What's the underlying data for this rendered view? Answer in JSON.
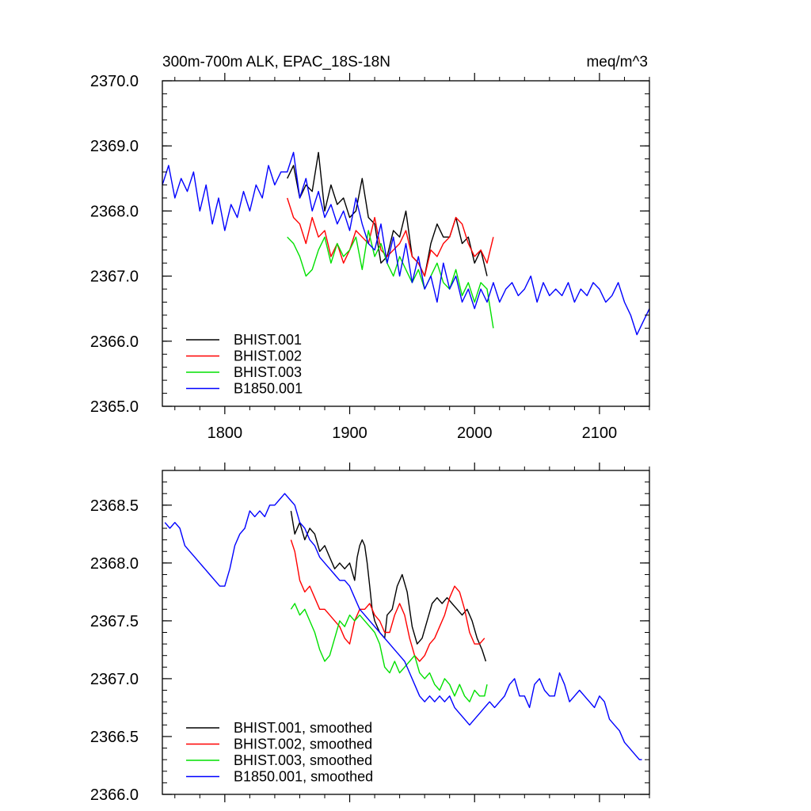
{
  "chart_data": [
    {
      "type": "line",
      "title_left": "300m-700m ALK, EPAC_18S-18N",
      "title_right": "meq/m^3",
      "xlim": [
        1750,
        2140
      ],
      "ylim": [
        2365.0,
        2370.0
      ],
      "xticks": [
        1800,
        1900,
        2000,
        2100
      ],
      "xtick_labels": [
        "1800",
        "1900",
        "2000",
        "2100"
      ],
      "yticks": [
        2365.0,
        2366.0,
        2367.0,
        2368.0,
        2369.0,
        2370.0
      ],
      "ytick_labels": [
        "2365.0",
        "2366.0",
        "2367.0",
        "2368.0",
        "2369.0",
        "2370.0"
      ],
      "legend": [
        "BHIST.001",
        "BHIST.002",
        "BHIST.003",
        "B1850.001"
      ],
      "series": [
        {
          "name": "BHIST.001",
          "color": "#000000",
          "x": [
            1850,
            1855,
            1860,
            1865,
            1870,
            1875,
            1880,
            1885,
            1890,
            1895,
            1900,
            1905,
            1910,
            1915,
            1920,
            1925,
            1930,
            1935,
            1940,
            1945,
            1950,
            1955,
            1960,
            1965,
            1970,
            1975,
            1980,
            1985,
            1990,
            1995,
            2000,
            2005,
            2010
          ],
          "y": [
            2368.5,
            2368.7,
            2368.2,
            2368.4,
            2368.3,
            2368.9,
            2368.0,
            2368.4,
            2368.1,
            2368.2,
            2367.9,
            2368.0,
            2368.5,
            2367.9,
            2367.8,
            2367.2,
            2367.3,
            2367.7,
            2367.6,
            2368.0,
            2367.3,
            2367.2,
            2367.0,
            2367.5,
            2367.8,
            2367.6,
            2367.6,
            2367.9,
            2367.5,
            2367.6,
            2367.2,
            2367.4,
            2367.0
          ]
        },
        {
          "name": "BHIST.002",
          "color": "#ff0000",
          "x": [
            1850,
            1855,
            1860,
            1865,
            1870,
            1875,
            1880,
            1885,
            1890,
            1895,
            1900,
            1905,
            1910,
            1915,
            1920,
            1925,
            1930,
            1935,
            1940,
            1945,
            1950,
            1955,
            1960,
            1965,
            1970,
            1975,
            1980,
            1985,
            1990,
            1995,
            2000,
            2005,
            2010,
            2015
          ],
          "y": [
            2368.2,
            2367.9,
            2367.8,
            2367.5,
            2367.9,
            2367.6,
            2367.7,
            2367.3,
            2367.5,
            2367.2,
            2367.4,
            2367.7,
            2367.6,
            2367.5,
            2367.9,
            2367.4,
            2367.3,
            2367.4,
            2367.5,
            2367.7,
            2367.3,
            2367.2,
            2367.0,
            2367.4,
            2367.3,
            2367.5,
            2367.6,
            2367.9,
            2367.8,
            2367.5,
            2367.3,
            2367.4,
            2367.2,
            2367.6
          ]
        },
        {
          "name": "BHIST.003",
          "color": "#00e000",
          "x": [
            1850,
            1855,
            1860,
            1865,
            1870,
            1875,
            1880,
            1885,
            1890,
            1895,
            1900,
            1905,
            1910,
            1915,
            1920,
            1925,
            1930,
            1935,
            1940,
            1945,
            1950,
            1955,
            1960,
            1965,
            1970,
            1975,
            1980,
            1985,
            1990,
            1995,
            2000,
            2005,
            2010,
            2015
          ],
          "y": [
            2367.6,
            2367.5,
            2367.3,
            2367.0,
            2367.1,
            2367.4,
            2367.6,
            2367.2,
            2367.5,
            2367.3,
            2367.4,
            2367.6,
            2367.1,
            2367.7,
            2367.3,
            2367.5,
            2367.2,
            2367.0,
            2367.3,
            2367.1,
            2366.9,
            2367.1,
            2366.8,
            2367.0,
            2367.2,
            2366.9,
            2366.8,
            2367.1,
            2366.7,
            2366.9,
            2366.6,
            2366.9,
            2366.8,
            2366.2
          ]
        },
        {
          "name": "B1850.001",
          "color": "#0000ff",
          "x": [
            1750,
            1755,
            1760,
            1765,
            1770,
            1775,
            1780,
            1785,
            1790,
            1795,
            1800,
            1805,
            1810,
            1815,
            1820,
            1825,
            1830,
            1835,
            1840,
            1845,
            1850,
            1855,
            1860,
            1865,
            1870,
            1875,
            1880,
            1885,
            1890,
            1895,
            1900,
            1905,
            1910,
            1915,
            1920,
            1925,
            1930,
            1935,
            1940,
            1945,
            1950,
            1955,
            1960,
            1965,
            1970,
            1975,
            1980,
            1985,
            1990,
            1995,
            2000,
            2005,
            2010,
            2015,
            2020,
            2025,
            2030,
            2035,
            2040,
            2045,
            2050,
            2055,
            2060,
            2065,
            2070,
            2075,
            2080,
            2085,
            2090,
            2095,
            2100,
            2105,
            2110,
            2115,
            2120,
            2125,
            2130,
            2135,
            2140
          ],
          "y": [
            2368.4,
            2368.7,
            2368.2,
            2368.5,
            2368.3,
            2368.6,
            2368.0,
            2368.4,
            2367.8,
            2368.2,
            2367.7,
            2368.1,
            2367.9,
            2368.3,
            2368.0,
            2368.4,
            2368.2,
            2368.7,
            2368.4,
            2368.6,
            2368.6,
            2368.9,
            2368.2,
            2368.5,
            2368.0,
            2368.3,
            2367.9,
            2368.1,
            2367.8,
            2368.0,
            2367.7,
            2368.2,
            2367.8,
            2367.5,
            2367.4,
            2367.8,
            2367.2,
            2367.6,
            2367.0,
            2367.5,
            2366.9,
            2367.3,
            2366.8,
            2367.0,
            2366.6,
            2367.2,
            2366.8,
            2367.0,
            2366.6,
            2366.8,
            2366.5,
            2366.8,
            2366.6,
            2366.9,
            2366.6,
            2366.8,
            2366.9,
            2366.7,
            2366.8,
            2367.0,
            2366.6,
            2366.9,
            2366.7,
            2366.8,
            2366.7,
            2366.9,
            2366.6,
            2366.8,
            2366.7,
            2366.9,
            2366.8,
            2366.6,
            2366.7,
            2366.9,
            2366.6,
            2366.4,
            2366.1,
            2366.3,
            2366.5
          ]
        }
      ]
    },
    {
      "type": "line",
      "xlim": [
        1750,
        2140
      ],
      "ylim": [
        2366.0,
        2368.8
      ],
      "xticks": [
        1800,
        1900,
        2000,
        2100
      ],
      "xtick_labels": [],
      "yticks": [
        2366.0,
        2366.5,
        2367.0,
        2367.5,
        2368.0,
        2368.5
      ],
      "ytick_labels": [
        "2366.0",
        "2366.5",
        "2367.0",
        "2367.5",
        "2368.0",
        "2368.5"
      ],
      "legend": [
        "BHIST.001, smoothed",
        "BHIST.002, smoothed",
        "BHIST.003, smoothed",
        "B1850.001, smoothed"
      ],
      "series": [
        {
          "name": "BHIST.001, smoothed",
          "color": "#000000",
          "x": [
            1853,
            1856,
            1860,
            1864,
            1868,
            1872,
            1876,
            1880,
            1884,
            1888,
            1892,
            1896,
            1900,
            1904,
            1906,
            1908,
            1910,
            1912,
            1914,
            1916,
            1918,
            1920,
            1924,
            1928,
            1930,
            1934,
            1938,
            1942,
            1946,
            1950,
            1954,
            1958,
            1962,
            1966,
            1970,
            1974,
            1978,
            1982,
            1986,
            1990,
            1994,
            1998,
            2002,
            2006,
            2009
          ],
          "y": [
            2368.45,
            2368.25,
            2368.35,
            2368.2,
            2368.3,
            2368.25,
            2368.1,
            2368.15,
            2368.05,
            2367.95,
            2368.0,
            2367.95,
            2368.0,
            2367.85,
            2368.05,
            2368.15,
            2368.2,
            2368.15,
            2368.0,
            2367.8,
            2367.6,
            2367.5,
            2367.4,
            2367.35,
            2367.55,
            2367.6,
            2367.8,
            2367.9,
            2367.75,
            2367.45,
            2367.3,
            2367.35,
            2367.5,
            2367.65,
            2367.7,
            2367.65,
            2367.7,
            2367.65,
            2367.6,
            2367.55,
            2367.6,
            2367.5,
            2367.35,
            2367.25,
            2367.15
          ]
        },
        {
          "name": "BHIST.002, smoothed",
          "color": "#ff0000",
          "x": [
            1853,
            1856,
            1860,
            1864,
            1868,
            1872,
            1876,
            1880,
            1884,
            1888,
            1892,
            1896,
            1900,
            1904,
            1908,
            1912,
            1916,
            1920,
            1924,
            1928,
            1932,
            1936,
            1940,
            1944,
            1948,
            1952,
            1956,
            1960,
            1964,
            1968,
            1972,
            1976,
            1980,
            1984,
            1988,
            1992,
            1996,
            2000,
            2004,
            2008
          ],
          "y": [
            2368.2,
            2368.1,
            2367.85,
            2367.75,
            2367.8,
            2367.7,
            2367.6,
            2367.6,
            2367.55,
            2367.5,
            2367.45,
            2367.35,
            2367.3,
            2367.5,
            2367.6,
            2367.6,
            2367.65,
            2367.55,
            2367.5,
            2367.4,
            2367.4,
            2367.55,
            2367.65,
            2367.55,
            2367.35,
            2367.2,
            2367.15,
            2367.2,
            2367.3,
            2367.35,
            2367.45,
            2367.55,
            2367.7,
            2367.8,
            2367.75,
            2367.6,
            2367.4,
            2367.3,
            2367.3,
            2367.35
          ]
        },
        {
          "name": "BHIST.003, smoothed",
          "color": "#00e000",
          "x": [
            1853,
            1856,
            1860,
            1864,
            1868,
            1872,
            1876,
            1880,
            1884,
            1888,
            1892,
            1896,
            1900,
            1904,
            1908,
            1912,
            1916,
            1920,
            1924,
            1928,
            1932,
            1936,
            1940,
            1944,
            1948,
            1952,
            1956,
            1960,
            1964,
            1968,
            1972,
            1976,
            1980,
            1984,
            1988,
            1992,
            1996,
            2000,
            2004,
            2008,
            2010
          ],
          "y": [
            2367.6,
            2367.65,
            2367.55,
            2367.6,
            2367.5,
            2367.4,
            2367.25,
            2367.15,
            2367.2,
            2367.35,
            2367.5,
            2367.45,
            2367.55,
            2367.5,
            2367.55,
            2367.5,
            2367.45,
            2367.4,
            2367.3,
            2367.1,
            2367.05,
            2367.15,
            2367.05,
            2367.1,
            2367.15,
            2367.2,
            2367.05,
            2367.0,
            2367.05,
            2366.95,
            2366.9,
            2367.0,
            2366.95,
            2366.85,
            2366.95,
            2366.85,
            2366.8,
            2366.9,
            2366.85,
            2366.85,
            2366.95
          ]
        },
        {
          "name": "B1850.001, smoothed",
          "color": "#0000ff",
          "x": [
            1752,
            1756,
            1760,
            1764,
            1768,
            1772,
            1776,
            1780,
            1784,
            1788,
            1792,
            1796,
            1800,
            1804,
            1808,
            1812,
            1816,
            1820,
            1824,
            1828,
            1832,
            1836,
            1840,
            1844,
            1848,
            1852,
            1856,
            1860,
            1864,
            1868,
            1872,
            1876,
            1880,
            1884,
            1888,
            1892,
            1896,
            1900,
            1904,
            1908,
            1912,
            1916,
            1920,
            1924,
            1928,
            1932,
            1936,
            1940,
            1944,
            1948,
            1952,
            1956,
            1960,
            1964,
            1968,
            1972,
            1976,
            1980,
            1984,
            1988,
            1992,
            1996,
            2000,
            2004,
            2008,
            2012,
            2016,
            2020,
            2024,
            2028,
            2032,
            2036,
            2040,
            2044,
            2048,
            2052,
            2056,
            2060,
            2064,
            2068,
            2072,
            2076,
            2080,
            2084,
            2088,
            2092,
            2096,
            2100,
            2104,
            2108,
            2112,
            2116,
            2120,
            2124,
            2128,
            2132,
            2134
          ],
          "y": [
            2368.35,
            2368.3,
            2368.35,
            2368.3,
            2368.15,
            2368.1,
            2368.05,
            2368.0,
            2367.95,
            2367.9,
            2367.85,
            2367.8,
            2367.8,
            2367.95,
            2368.15,
            2368.25,
            2368.3,
            2368.45,
            2368.4,
            2368.45,
            2368.4,
            2368.5,
            2368.5,
            2368.55,
            2368.6,
            2368.55,
            2368.5,
            2368.35,
            2368.3,
            2368.2,
            2368.15,
            2368.05,
            2368.0,
            2367.95,
            2367.9,
            2367.85,
            2367.85,
            2367.8,
            2367.7,
            2367.6,
            2367.55,
            2367.5,
            2367.45,
            2367.4,
            2367.35,
            2367.3,
            2367.25,
            2367.2,
            2367.15,
            2367.05,
            2366.95,
            2366.85,
            2366.8,
            2366.85,
            2366.8,
            2366.85,
            2366.8,
            2366.85,
            2366.75,
            2366.7,
            2366.65,
            2366.6,
            2366.65,
            2366.7,
            2366.75,
            2366.8,
            2366.75,
            2366.8,
            2366.85,
            2366.95,
            2367.0,
            2366.85,
            2366.85,
            2366.75,
            2366.95,
            2367.0,
            2366.9,
            2366.85,
            2366.85,
            2367.05,
            2366.95,
            2366.8,
            2366.85,
            2366.9,
            2366.85,
            2366.8,
            2366.75,
            2366.85,
            2366.8,
            2366.65,
            2366.6,
            2366.55,
            2366.45,
            2366.4,
            2366.35,
            2366.3,
            2366.3
          ]
        }
      ]
    }
  ]
}
